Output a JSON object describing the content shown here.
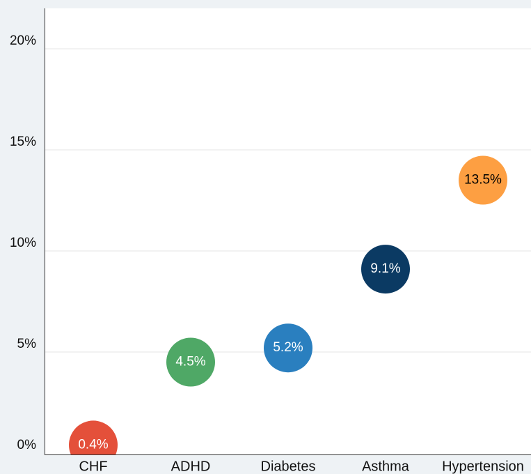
{
  "chart_data": {
    "type": "scatter",
    "categories": [
      "CHF",
      "ADHD",
      "Diabetes",
      "Asthma",
      "Hypertension"
    ],
    "values": [
      0.4,
      4.5,
      5.2,
      9.1,
      13.5
    ],
    "value_labels": [
      "0.4%",
      "4.5%",
      "5.2%",
      "9.1%",
      "13.5%"
    ],
    "colors": [
      "#e4503a",
      "#4fa866",
      "#2a7fbf",
      "#0b3a63",
      "#fd9f42"
    ],
    "label_colors": [
      "#ffffff",
      "#ffffff",
      "#ffffff",
      "#ffffff",
      "#000000"
    ],
    "ylim": [
      0,
      22
    ],
    "yticks": [
      {
        "value": 0,
        "label": "0%"
      },
      {
        "value": 5,
        "label": "5%"
      },
      {
        "value": 10,
        "label": "10%"
      },
      {
        "value": 15,
        "label": "15%"
      },
      {
        "value": 20,
        "label": "20%"
      }
    ],
    "grid": true
  }
}
